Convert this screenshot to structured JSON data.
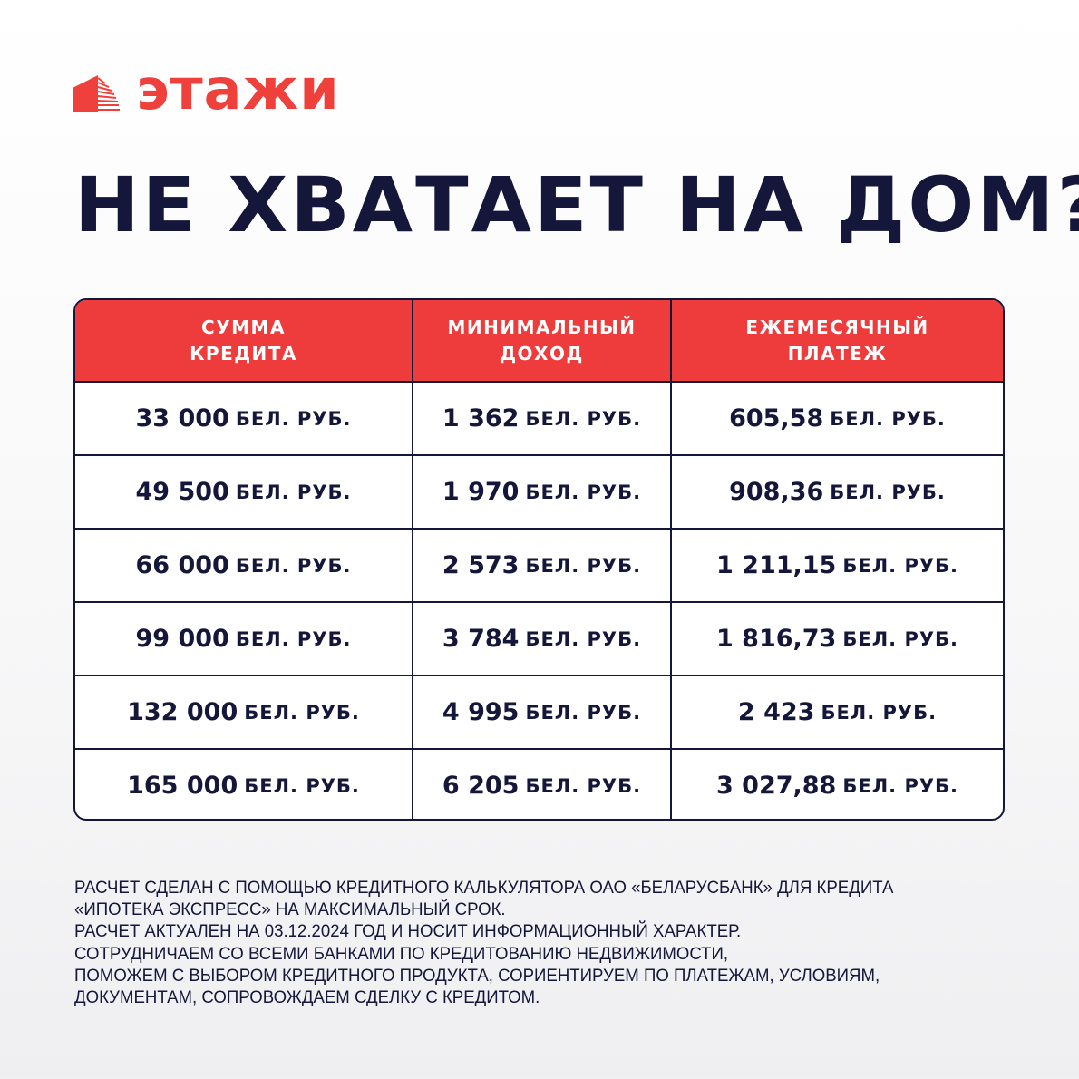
{
  "brand": {
    "name": "этажи",
    "color": "#f0403c",
    "icon": "building-icon"
  },
  "title": "НЕ ХВАТАЕТ НА ДОМ?",
  "table": {
    "header_color": "#ee3b3b",
    "unit": "БЕЛ. РУБ.",
    "columns": [
      "СУММА\nКРЕДИТА",
      "МИНИМАЛЬНЫЙ\nДОХОД",
      "ЕЖЕМЕСЯЧНЫЙ\nПЛАТЕЖ"
    ],
    "rows": [
      [
        "33 000",
        "1 362",
        "605,58"
      ],
      [
        "49 500",
        "1 970",
        "908,36"
      ],
      [
        "66 000",
        "2 573",
        "1 211,15"
      ],
      [
        "99 000",
        "3 784",
        "1 816,73"
      ],
      [
        "132 000",
        "4 995",
        "2 423"
      ],
      [
        "165 000",
        "6 205",
        "3 027,88"
      ]
    ]
  },
  "footnote": [
    "Расчет сделан с помощью кредитного калькулятора ОАО «Беларусбанк» для кредита",
    "«Ипотека Экспресс» на максимальный срок.",
    "Расчет актуален на 03.12.2024 год и носит информационный характер.",
    "Сотрудничаем со всеми банками по кредитованию недвижимости,",
    "поможем с выбором кредитного продукта, сориентируем по платежам, условиям,",
    "документам, сопровождаем сделку с кредитом."
  ]
}
